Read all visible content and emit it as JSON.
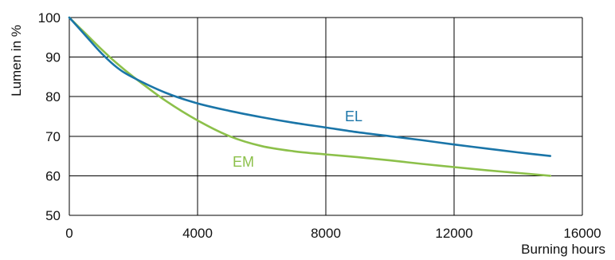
{
  "chart_data": {
    "type": "line",
    "title": "",
    "xlabel": "Burning hours",
    "ylabel": "Lumen in %",
    "xlim": [
      0,
      16000
    ],
    "ylim": [
      50,
      100
    ],
    "x_ticks": [
      0,
      4000,
      8000,
      12000,
      16000
    ],
    "y_ticks": [
      50,
      60,
      70,
      80,
      90,
      100
    ],
    "x_tick_labels": [
      "0",
      "4000",
      "8000",
      "12000",
      "16000"
    ],
    "y_tick_labels": [
      "50",
      "60",
      "70",
      "80",
      "90",
      "100"
    ],
    "grid": true,
    "series": [
      {
        "name": "EL",
        "color": "#1a75a8",
        "x": [
          0,
          500,
          1000,
          1500,
          2000,
          3000,
          4000,
          5000,
          6000,
          7000,
          8000,
          9000,
          10000,
          11000,
          12000,
          13000,
          14000,
          15000
        ],
        "y": [
          100,
          95.5,
          91.0,
          87.3,
          84.8,
          81.0,
          78.3,
          76.4,
          74.8,
          73.4,
          72.2,
          71.0,
          70.0,
          69.0,
          67.9,
          66.9,
          65.9,
          65.0
        ]
      },
      {
        "name": "EM",
        "color": "#8cc04a",
        "x": [
          0,
          500,
          1000,
          1500,
          2000,
          3000,
          4000,
          5000,
          6000,
          7000,
          8000,
          9000,
          10000,
          11000,
          12000,
          13000,
          14000,
          15000
        ],
        "y": [
          100,
          96.0,
          92.0,
          88.3,
          85.0,
          79.0,
          74.0,
          70.0,
          67.5,
          66.2,
          65.4,
          64.7,
          63.9,
          63.0,
          62.2,
          61.4,
          60.7,
          60.0
        ]
      }
    ]
  }
}
